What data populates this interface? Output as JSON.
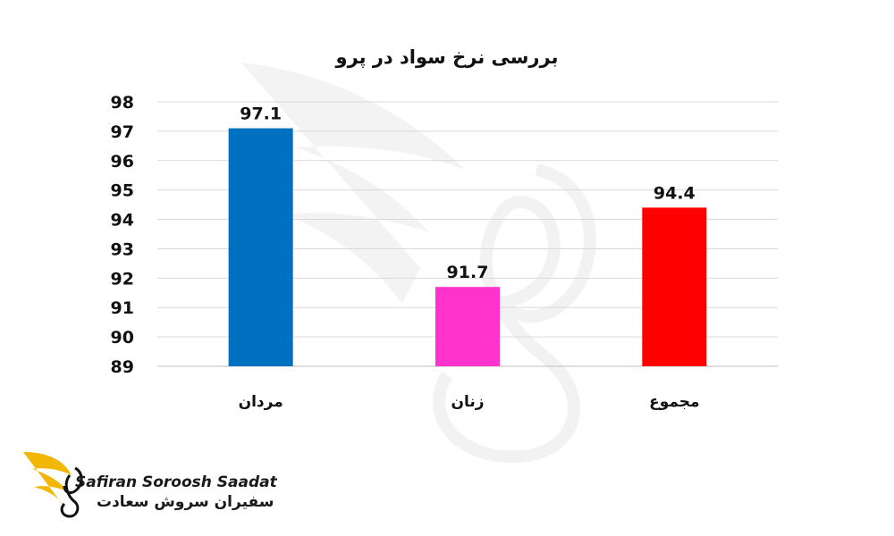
{
  "chart_data": {
    "type": "bar",
    "title": "بررسی نرخ سواد در پرو",
    "categories": [
      "مردان",
      "زنان",
      "مجموع"
    ],
    "values": [
      97.1,
      91.7,
      94.4
    ],
    "value_labels": [
      "97.1",
      "91.7",
      "94.4"
    ],
    "bar_colors": [
      "#0070c0",
      "#ff33cc",
      "#ff0000"
    ],
    "ylim": [
      89,
      98
    ],
    "yticks": [
      89,
      90,
      91,
      92,
      93,
      94,
      95,
      96,
      97,
      98
    ],
    "grid": true,
    "xlabel": "",
    "ylabel": ""
  },
  "branding": {
    "latin_name": "Safiran Soroosh Saadat",
    "persian_name": "سفیران سروش سعادت",
    "accent_color": "#f2b705"
  }
}
